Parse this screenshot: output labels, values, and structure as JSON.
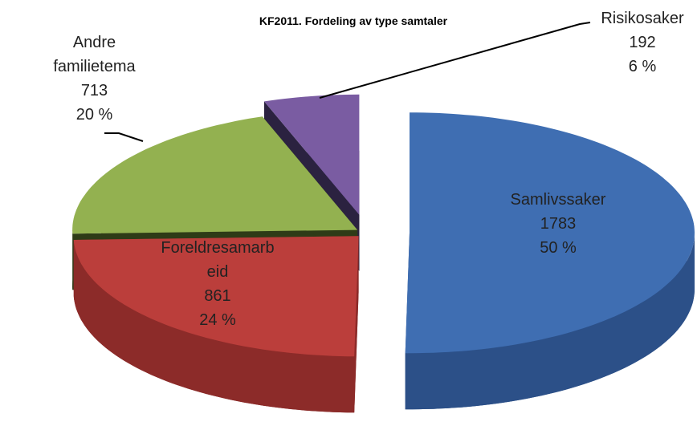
{
  "chart_data": {
    "type": "pie3d",
    "title": "KF2011. Fordeling av type samtaler",
    "categories": [
      "Samlivssaker",
      "Foreldresamarbeid",
      "Andre familietema",
      "Risikosaker"
    ],
    "values": [
      1783,
      861,
      713,
      192
    ],
    "percent_labels": [
      "50 %",
      "24 %",
      "20 %",
      "6 %"
    ],
    "colors": [
      "#3f6eb2",
      "#bb3e3b",
      "#93b150",
      "#7a5ca2"
    ],
    "side_colors": [
      "#2c5088",
      "#8c2b29",
      "#2e3b17",
      "#2b2240"
    ]
  }
}
